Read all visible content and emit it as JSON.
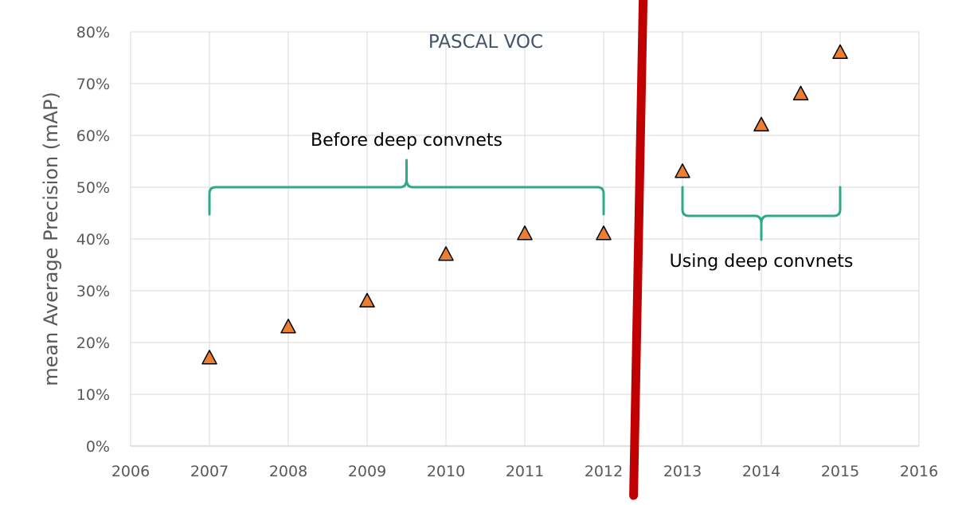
{
  "chart_data": {
    "type": "scatter",
    "title": "PASCAL VOC",
    "xlabel": "",
    "ylabel": "mean Average Precision (mAP)",
    "xlim": [
      2006,
      2016
    ],
    "ylim": [
      0,
      0.8
    ],
    "x_ticks": [
      "2006",
      "2007",
      "2008",
      "2009",
      "2010",
      "2011",
      "2012",
      "2013",
      "2014",
      "2015",
      "2016"
    ],
    "y_ticks": [
      "0%",
      "10%",
      "20%",
      "30%",
      "40%",
      "50%",
      "60%",
      "70%",
      "80%"
    ],
    "grid": true,
    "marker": "triangle",
    "marker_color": "#ed7d31",
    "divider_color": "#c00000",
    "divider_x": 2012.4,
    "bracket_color": "#2eaa8a",
    "series": [
      {
        "x": [
          2007,
          2008,
          2009,
          2010,
          2011,
          2012,
          2013,
          2014,
          2014.5,
          2015
        ],
        "y": [
          0.17,
          0.23,
          0.28,
          0.37,
          0.41,
          0.41,
          0.53,
          0.62,
          0.68,
          0.76
        ]
      }
    ],
    "annotations": [
      {
        "text": "Before deep convnets",
        "x_start": 2007,
        "x_end": 2012,
        "y": 0.5
      },
      {
        "text": "Using deep convnets",
        "x_start": 2013,
        "x_end": 2015,
        "y": 0.5
      }
    ]
  }
}
